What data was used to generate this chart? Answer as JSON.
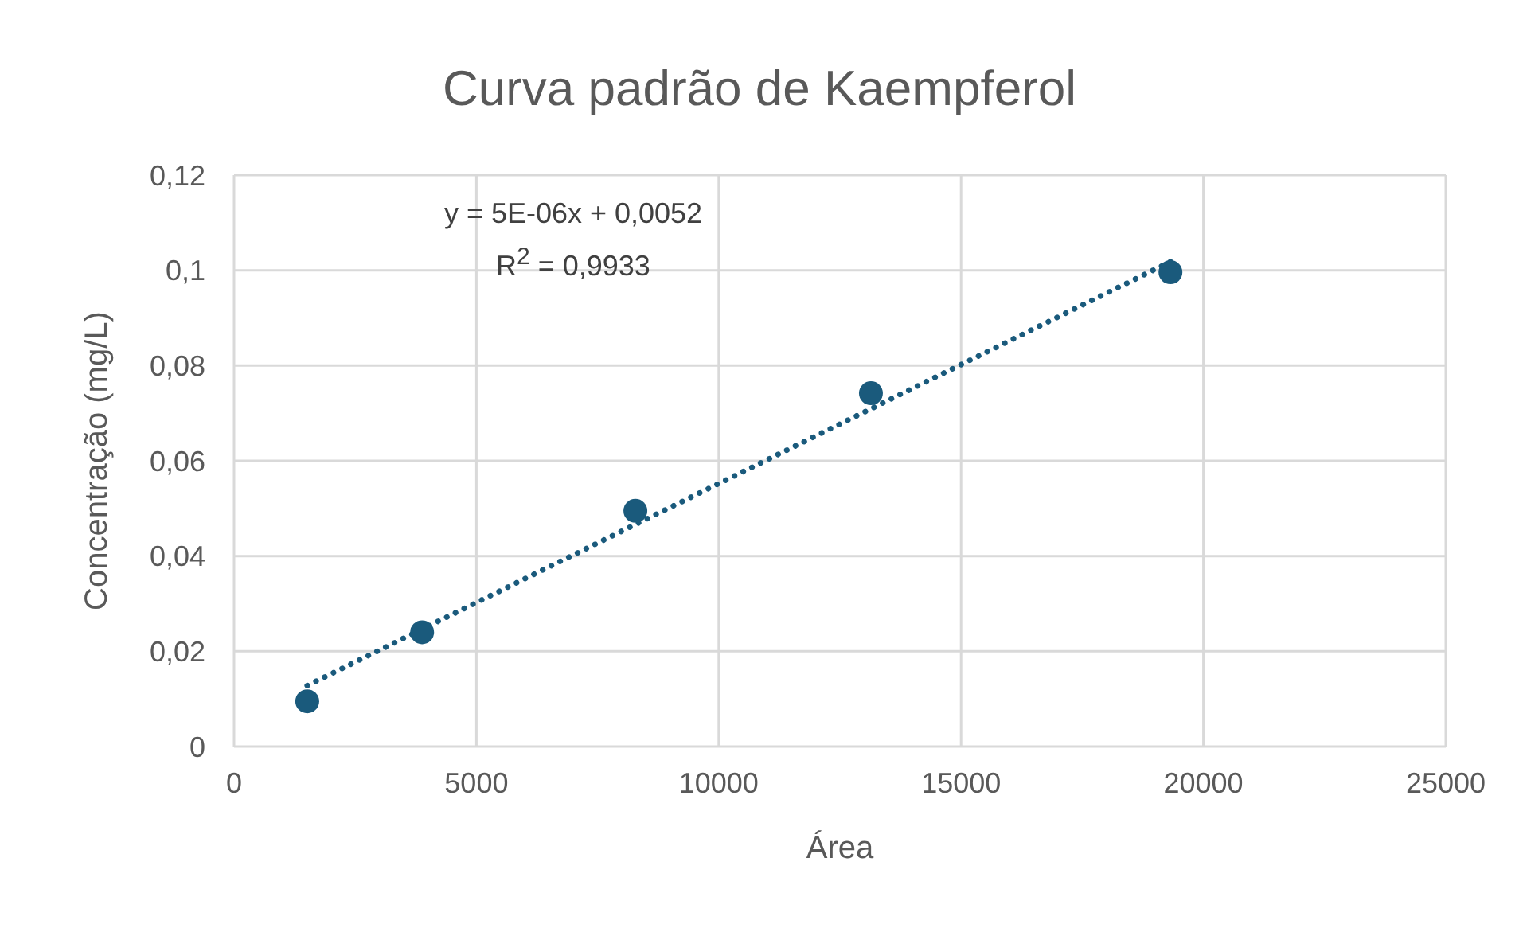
{
  "chart_data": {
    "type": "scatter",
    "title": "Curva padrão de Kaempferol",
    "xlabel": "Área",
    "ylabel": "Concentração (mg/L)",
    "annotations": [
      "y = 5E-06x + 0,0052",
      "R$^{2}$ = 0,9933"
    ],
    "xlim": [
      0,
      25000
    ],
    "xticks": [
      0,
      5000,
      10000,
      15000,
      20000,
      25000
    ],
    "ylim": [
      0,
      0.12
    ],
    "yticks": [
      0,
      {
        "value": 0.02,
        "label": "0,02"
      },
      {
        "value": 0.04,
        "label": "0,04"
      },
      {
        "value": 0.06,
        "label": "0,06"
      },
      {
        "value": 0.08,
        "label": "0,08"
      },
      {
        "value": 0.1,
        "label": "0,1"
      },
      {
        "value": 0.12,
        "label": "0,12"
      }
    ],
    "grid": true,
    "series": [
      {
        "color": "#1a5a7c",
        "marker": "circle",
        "x": [
          1510,
          3880,
          8280,
          13140,
          19320
        ],
        "values": [
          0.0095,
          0.024,
          0.0495,
          0.0742,
          0.0996
        ]
      },
      {
        "type": "line",
        "color": "#1a5a7c",
        "line_style": "dotted",
        "marker": "none",
        "x": [
          1510,
          19320
        ],
        "values": [
          0.0128,
          0.1018
        ]
      }
    ]
  }
}
